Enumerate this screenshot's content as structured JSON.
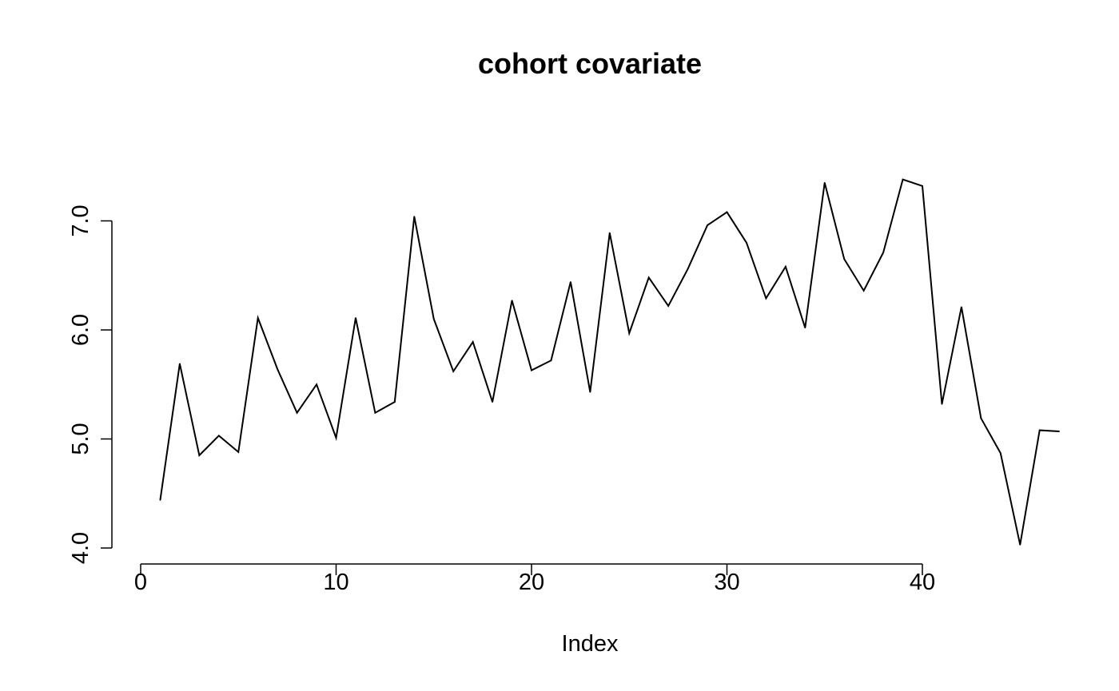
{
  "chart_data": {
    "type": "line",
    "title": "cohort covariate",
    "xlabel": "Index",
    "ylabel": "",
    "xlim": [
      0,
      47
    ],
    "ylim": [
      3.8,
      7.6
    ],
    "x_ticks": [
      0,
      10,
      20,
      30,
      40
    ],
    "y_ticks": [
      4.0,
      5.0,
      6.0,
      7.0
    ],
    "y_tick_labels": [
      "4.0",
      "5.0",
      "6.0",
      "7.0"
    ],
    "grid": false,
    "legend": "none",
    "series": [
      {
        "x": [
          1,
          2,
          3,
          4,
          5,
          6,
          7,
          8,
          9,
          10,
          11,
          12,
          13,
          14,
          15,
          16,
          17,
          18,
          19,
          20,
          21,
          22,
          23,
          24,
          25,
          26,
          27,
          28,
          29,
          30,
          31,
          32,
          33,
          34,
          35,
          36,
          37,
          38,
          39,
          40,
          41,
          42,
          43,
          44,
          45,
          46,
          47
        ],
        "values": [
          4.44,
          5.69,
          4.85,
          5.03,
          4.88,
          6.11,
          5.64,
          5.24,
          5.5,
          5.01,
          6.11,
          5.24,
          5.34,
          7.04,
          6.1,
          5.62,
          5.89,
          5.34,
          6.27,
          5.63,
          5.72,
          6.44,
          5.43,
          6.89,
          5.97,
          6.48,
          6.22,
          6.56,
          6.96,
          7.08,
          6.8,
          6.29,
          6.58,
          6.02,
          7.35,
          6.65,
          6.36,
          6.71,
          7.38,
          7.32,
          5.32,
          6.21,
          5.19,
          4.87,
          4.03,
          5.08,
          5.07
        ]
      }
    ]
  }
}
